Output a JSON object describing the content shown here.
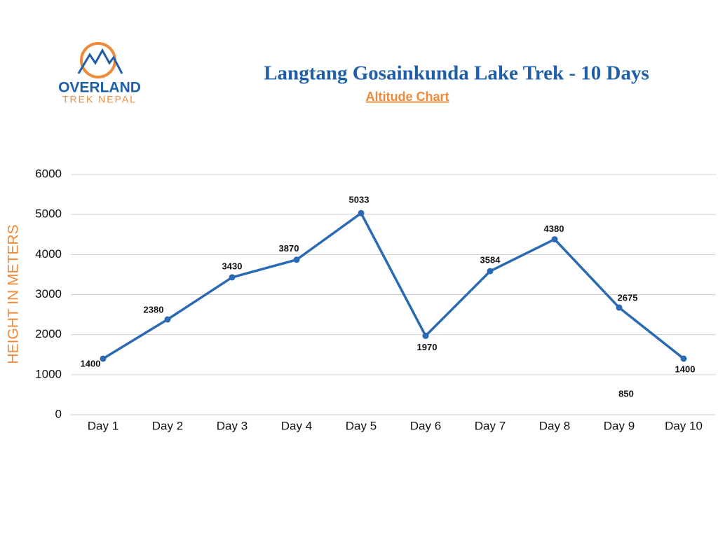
{
  "logo": {
    "name": "OVERLAND",
    "tagline": "TREK NEPAL"
  },
  "chart_data": {
    "type": "line",
    "title": "Langtang Gosainkunda Lake Trek - 10 Days",
    "subtitle": "Altitude Chart",
    "y_label": "HEIGHT IN METERS",
    "categories": [
      "Day 1",
      "Day 2",
      "Day 3",
      "Day 4",
      "Day 5",
      "Day 6",
      "Day 7",
      "Day 8",
      "Day 9",
      "Day 10"
    ],
    "series": [
      {
        "name": "Altitude",
        "color": "#2a69b3",
        "values": [
          1400,
          2380,
          3430,
          3870,
          5033,
          1970,
          3584,
          4380,
          2675,
          1400
        ]
      }
    ],
    "annotations": [
      "850"
    ],
    "ylim": [
      0,
      6000
    ],
    "yticks": [
      0,
      1000,
      2000,
      3000,
      4000,
      5000,
      6000
    ],
    "grid": true
  }
}
